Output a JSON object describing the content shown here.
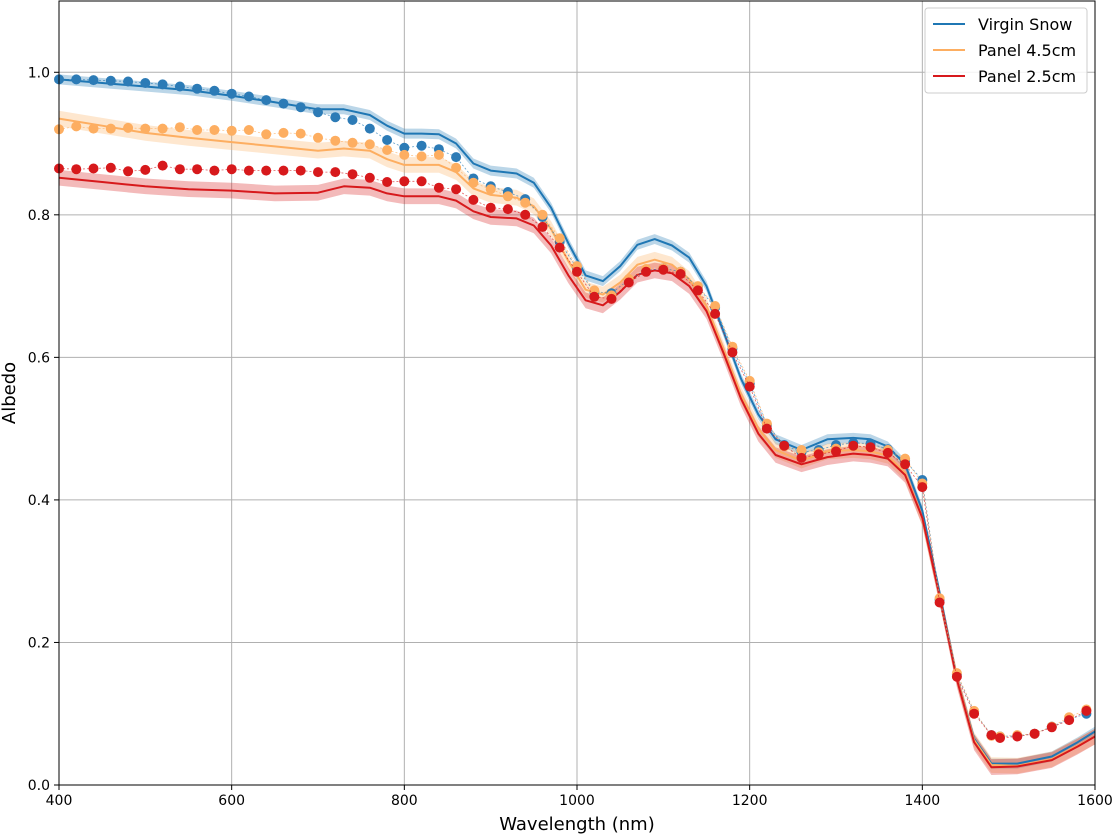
{
  "chart_data": {
    "type": "line",
    "xlabel": "Wavelength (nm)",
    "ylabel": "Albedo",
    "xlim": [
      400,
      1600
    ],
    "ylim": [
      0.0,
      1.1
    ],
    "xticks": [
      400,
      600,
      800,
      1000,
      1200,
      1400,
      1600
    ],
    "yticks": [
      0.0,
      0.2,
      0.4,
      0.6,
      0.8,
      1.0
    ],
    "grid": true,
    "legend_position": "top-right",
    "series": [
      {
        "name": "Virgin Snow",
        "color": "#1f77b4",
        "line": {
          "x": [
            400,
            450,
            500,
            550,
            600,
            650,
            700,
            730,
            760,
            780,
            800,
            820,
            840,
            860,
            880,
            900,
            930,
            950,
            970,
            990,
            1010,
            1030,
            1050,
            1070,
            1090,
            1110,
            1130,
            1150,
            1170,
            1190,
            1210,
            1230,
            1260,
            1290,
            1320,
            1340,
            1360,
            1380,
            1400,
            1420,
            1440,
            1460,
            1480,
            1510,
            1550,
            1580,
            1600
          ],
          "y": [
            0.99,
            0.985,
            0.98,
            0.975,
            0.967,
            0.958,
            0.948,
            0.948,
            0.94,
            0.925,
            0.914,
            0.914,
            0.913,
            0.9,
            0.872,
            0.862,
            0.858,
            0.845,
            0.81,
            0.76,
            0.715,
            0.707,
            0.728,
            0.758,
            0.766,
            0.757,
            0.74,
            0.7,
            0.635,
            0.57,
            0.52,
            0.485,
            0.47,
            0.485,
            0.487,
            0.485,
            0.475,
            0.45,
            0.385,
            0.27,
            0.15,
            0.065,
            0.03,
            0.03,
            0.04,
            0.06,
            0.075
          ],
          "band": 0.007
        },
        "points": {
          "x": [
            400,
            420,
            440,
            460,
            480,
            500,
            520,
            540,
            560,
            580,
            600,
            620,
            640,
            660,
            680,
            700,
            720,
            740,
            760,
            780,
            800,
            820,
            840,
            860,
            880,
            900,
            920,
            940,
            960,
            980,
            1000,
            1020,
            1040,
            1060,
            1080,
            1100,
            1120,
            1140,
            1160,
            1180,
            1200,
            1220,
            1240,
            1260,
            1280,
            1300,
            1320,
            1340,
            1360,
            1380,
            1400,
            1420,
            1440,
            1460,
            1480,
            1490,
            1510,
            1530,
            1550,
            1570,
            1590
          ],
          "y": [
            0.99,
            0.99,
            0.989,
            0.988,
            0.987,
            0.985,
            0.983,
            0.98,
            0.977,
            0.974,
            0.97,
            0.966,
            0.961,
            0.956,
            0.951,
            0.944,
            0.937,
            0.933,
            0.921,
            0.905,
            0.894,
            0.897,
            0.892,
            0.881,
            0.851,
            0.84,
            0.832,
            0.822,
            0.797,
            0.762,
            0.725,
            0.692,
            0.69,
            0.709,
            0.722,
            0.725,
            0.72,
            0.699,
            0.67,
            0.612,
            0.563,
            0.505,
            0.477,
            0.467,
            0.47,
            0.477,
            0.48,
            0.479,
            0.471,
            0.455,
            0.428,
            0.26,
            0.155,
            0.103,
            0.07,
            0.068,
            0.069,
            0.072,
            0.082,
            0.092,
            0.1
          ]
        }
      },
      {
        "name": "Panel 4.5cm",
        "color": "#fdae61",
        "line": {
          "x": [
            400,
            450,
            500,
            550,
            600,
            650,
            700,
            730,
            760,
            780,
            800,
            820,
            840,
            860,
            880,
            900,
            930,
            950,
            970,
            990,
            1010,
            1030,
            1050,
            1070,
            1090,
            1110,
            1130,
            1150,
            1170,
            1190,
            1210,
            1230,
            1260,
            1290,
            1320,
            1340,
            1360,
            1380,
            1400,
            1420,
            1440,
            1460,
            1480,
            1510,
            1550,
            1580,
            1600
          ],
          "y": [
            0.935,
            0.925,
            0.915,
            0.908,
            0.902,
            0.896,
            0.89,
            0.893,
            0.89,
            0.878,
            0.87,
            0.87,
            0.87,
            0.86,
            0.837,
            0.828,
            0.824,
            0.812,
            0.78,
            0.735,
            0.695,
            0.688,
            0.705,
            0.73,
            0.737,
            0.73,
            0.71,
            0.672,
            0.61,
            0.548,
            0.5,
            0.47,
            0.455,
            0.468,
            0.47,
            0.468,
            0.462,
            0.438,
            0.375,
            0.265,
            0.15,
            0.063,
            0.028,
            0.027,
            0.036,
            0.055,
            0.068
          ],
          "band": 0.011
        },
        "points": {
          "x": [
            400,
            420,
            440,
            460,
            480,
            500,
            520,
            540,
            560,
            580,
            600,
            620,
            640,
            660,
            680,
            700,
            720,
            740,
            760,
            780,
            800,
            820,
            840,
            860,
            880,
            900,
            920,
            940,
            960,
            980,
            1000,
            1020,
            1040,
            1060,
            1080,
            1100,
            1120,
            1140,
            1160,
            1180,
            1200,
            1220,
            1240,
            1260,
            1280,
            1300,
            1320,
            1340,
            1360,
            1380,
            1400,
            1420,
            1440,
            1460,
            1480,
            1490,
            1510,
            1530,
            1550,
            1570,
            1590
          ],
          "y": [
            0.92,
            0.924,
            0.921,
            0.921,
            0.922,
            0.921,
            0.921,
            0.923,
            0.919,
            0.919,
            0.918,
            0.919,
            0.913,
            0.915,
            0.914,
            0.908,
            0.904,
            0.901,
            0.899,
            0.891,
            0.884,
            0.882,
            0.884,
            0.866,
            0.845,
            0.836,
            0.826,
            0.817,
            0.8,
            0.767,
            0.728,
            0.694,
            0.687,
            0.71,
            0.724,
            0.725,
            0.72,
            0.7,
            0.672,
            0.615,
            0.567,
            0.507,
            0.475,
            0.47,
            0.467,
            0.472,
            0.475,
            0.473,
            0.47,
            0.458,
            0.423,
            0.262,
            0.157,
            0.104,
            0.069,
            0.068,
            0.07,
            0.072,
            0.082,
            0.095,
            0.106
          ]
        }
      },
      {
        "name": "Panel 2.5cm",
        "color": "#d7191c",
        "line": {
          "x": [
            400,
            450,
            500,
            550,
            600,
            650,
            700,
            730,
            760,
            780,
            800,
            820,
            840,
            860,
            880,
            900,
            930,
            950,
            970,
            990,
            1010,
            1030,
            1050,
            1070,
            1090,
            1110,
            1130,
            1150,
            1170,
            1190,
            1210,
            1230,
            1260,
            1290,
            1320,
            1340,
            1360,
            1380,
            1400,
            1420,
            1440,
            1460,
            1480,
            1510,
            1550,
            1580,
            1600
          ],
          "y": [
            0.852,
            0.846,
            0.84,
            0.836,
            0.834,
            0.83,
            0.831,
            0.84,
            0.838,
            0.83,
            0.826,
            0.826,
            0.826,
            0.82,
            0.805,
            0.797,
            0.795,
            0.785,
            0.757,
            0.715,
            0.68,
            0.673,
            0.692,
            0.716,
            0.722,
            0.718,
            0.7,
            0.665,
            0.605,
            0.542,
            0.493,
            0.463,
            0.45,
            0.46,
            0.465,
            0.463,
            0.458,
            0.435,
            0.375,
            0.265,
            0.148,
            0.06,
            0.025,
            0.026,
            0.035,
            0.054,
            0.068
          ],
          "band": 0.011
        },
        "points": {
          "x": [
            400,
            420,
            440,
            460,
            480,
            500,
            520,
            540,
            560,
            580,
            600,
            620,
            640,
            660,
            680,
            700,
            720,
            740,
            760,
            780,
            800,
            820,
            840,
            860,
            880,
            900,
            920,
            940,
            960,
            980,
            1000,
            1020,
            1040,
            1060,
            1080,
            1100,
            1120,
            1140,
            1160,
            1180,
            1200,
            1220,
            1240,
            1260,
            1280,
            1300,
            1320,
            1340,
            1360,
            1380,
            1400,
            1420,
            1440,
            1460,
            1480,
            1490,
            1510,
            1530,
            1550,
            1570,
            1590
          ],
          "y": [
            0.865,
            0.864,
            0.865,
            0.866,
            0.861,
            0.863,
            0.869,
            0.864,
            0.864,
            0.862,
            0.864,
            0.862,
            0.862,
            0.862,
            0.862,
            0.86,
            0.86,
            0.857,
            0.852,
            0.846,
            0.847,
            0.847,
            0.838,
            0.836,
            0.821,
            0.81,
            0.808,
            0.8,
            0.783,
            0.754,
            0.72,
            0.685,
            0.682,
            0.705,
            0.72,
            0.723,
            0.717,
            0.694,
            0.661,
            0.607,
            0.559,
            0.5,
            0.476,
            0.459,
            0.464,
            0.468,
            0.476,
            0.474,
            0.466,
            0.45,
            0.418,
            0.256,
            0.152,
            0.1,
            0.07,
            0.066,
            0.068,
            0.072,
            0.081,
            0.091,
            0.104
          ]
        }
      }
    ]
  }
}
